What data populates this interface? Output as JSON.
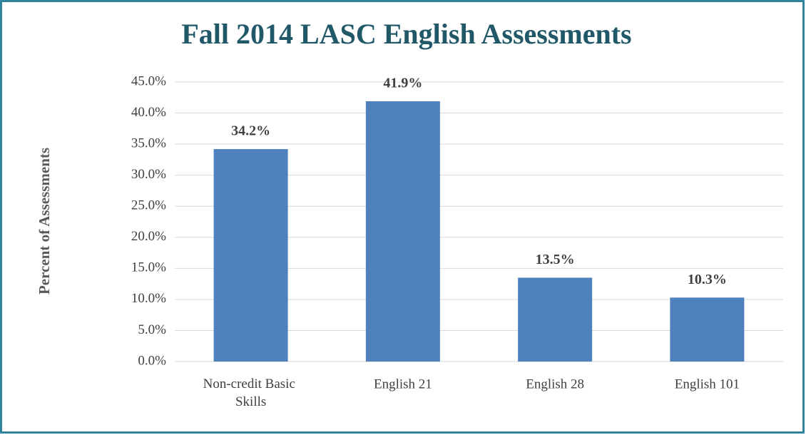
{
  "chart_data": {
    "type": "bar",
    "title": "Fall 2014 LASC English Assessments",
    "y_label": "Percent of Assessments",
    "categories": [
      "Non-credit Basic Skills",
      "English 21",
      "English 28",
      "English 101"
    ],
    "values": [
      34.2,
      41.9,
      13.5,
      10.3
    ],
    "value_labels": [
      "34.2%",
      "41.9%",
      "13.5%",
      "10.3%"
    ],
    "color": "#4f81bd",
    "ylim": [
      0,
      45
    ],
    "yticks": [
      {
        "value": 0,
        "label": "0.0%"
      },
      {
        "value": 5,
        "label": "5.0%"
      },
      {
        "value": 10,
        "label": "10.0%"
      },
      {
        "value": 15,
        "label": "15.0%"
      },
      {
        "value": 20,
        "label": "20.0%"
      },
      {
        "value": 25,
        "label": "25.0%"
      },
      {
        "value": 30,
        "label": "30.0%"
      },
      {
        "value": 35,
        "label": "35.0%"
      },
      {
        "value": 40,
        "label": "40.0%"
      },
      {
        "value": 45,
        "label": "45.0%"
      }
    ],
    "grid": true
  }
}
